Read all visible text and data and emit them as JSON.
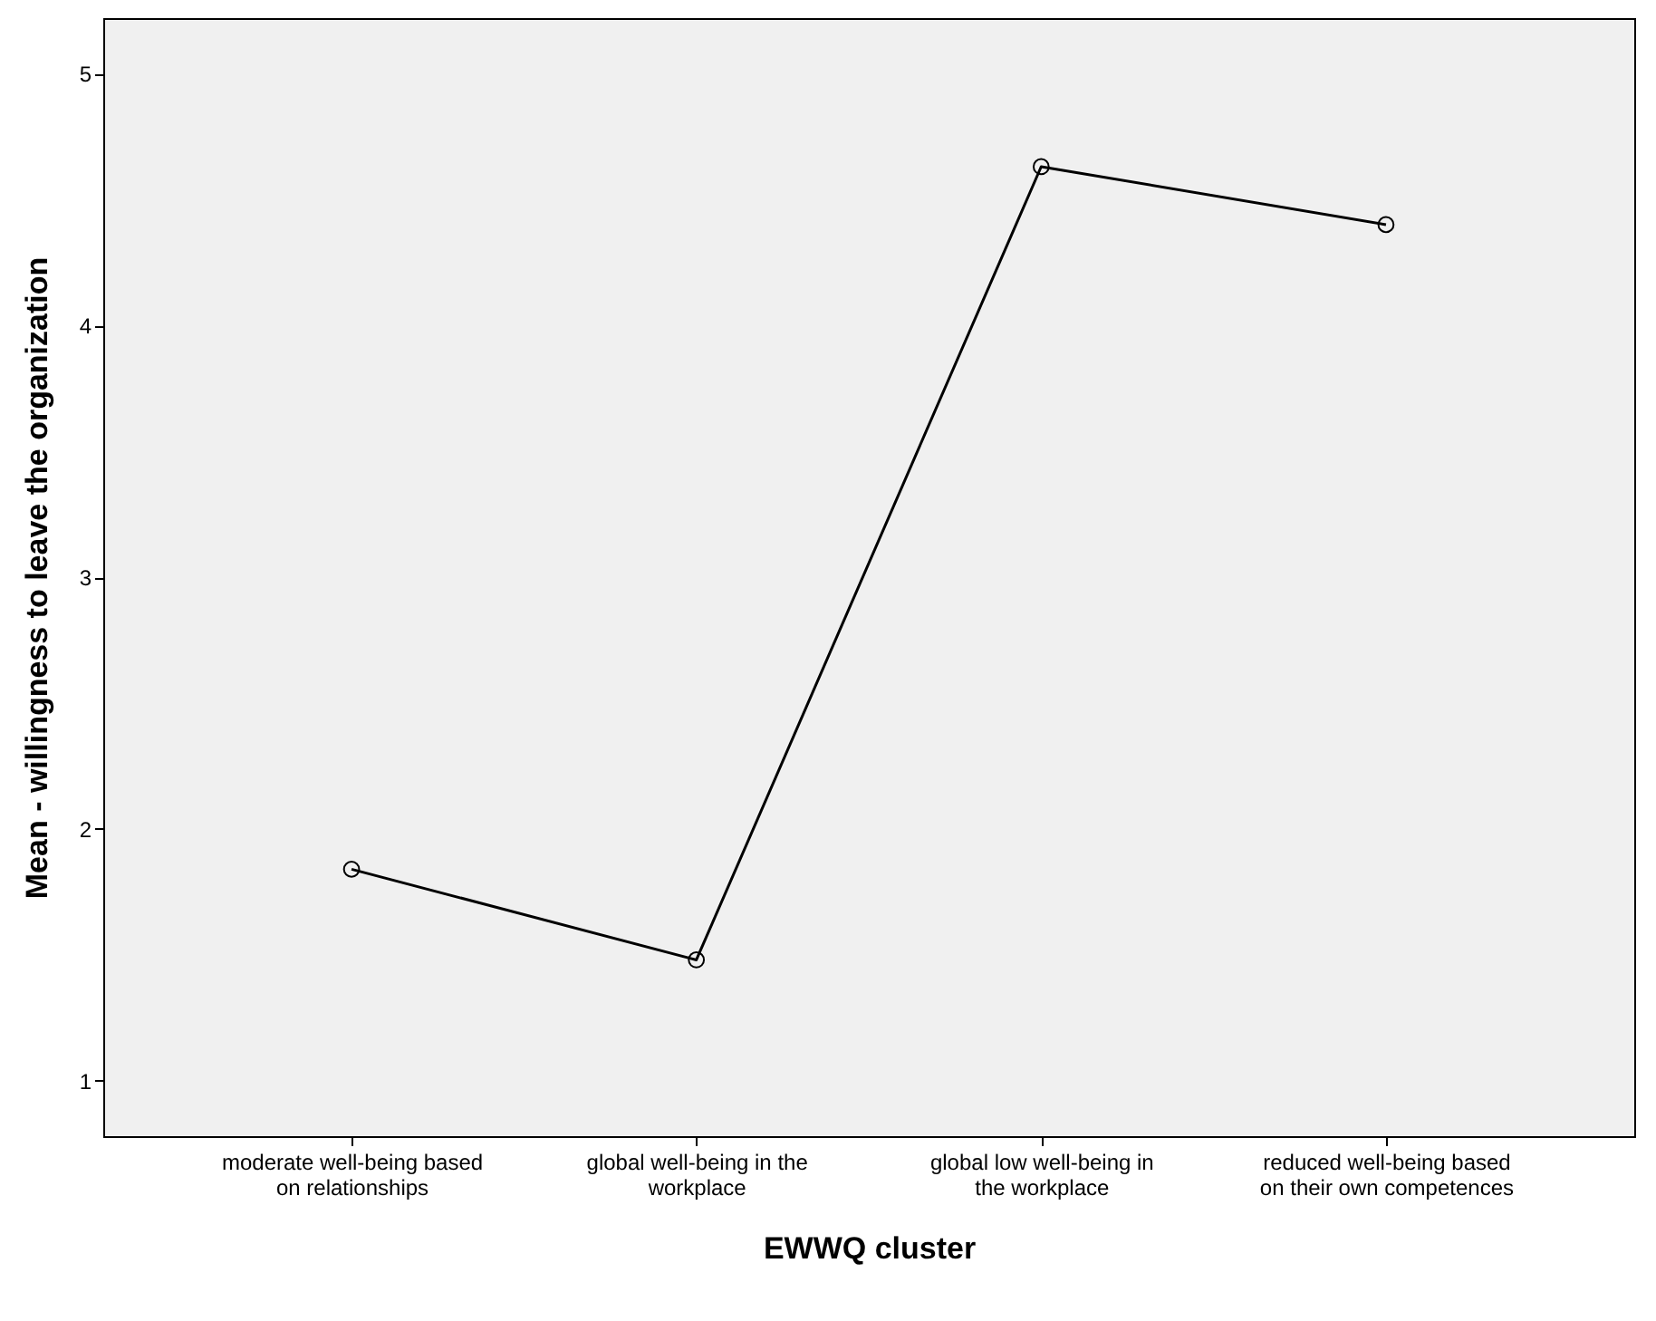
{
  "chart_data": {
    "type": "line",
    "xlabel": "EWWQ cluster",
    "ylabel": "Mean - willingness to leave the organization",
    "categories": [
      "moderate well-being based on relationships",
      "global well-being in the workplace",
      "global low well-being in the workplace",
      "reduced well-being based on their own competences"
    ],
    "series": [
      {
        "color": "#000000",
        "values": [
          1.84,
          1.48,
          4.63,
          4.4
        ]
      }
    ],
    "ylim": [
      0.78,
      5.22
    ],
    "yticks": [
      1,
      2,
      3,
      4,
      5
    ],
    "grid": false,
    "marker": "circle",
    "line_style": "solid"
  }
}
